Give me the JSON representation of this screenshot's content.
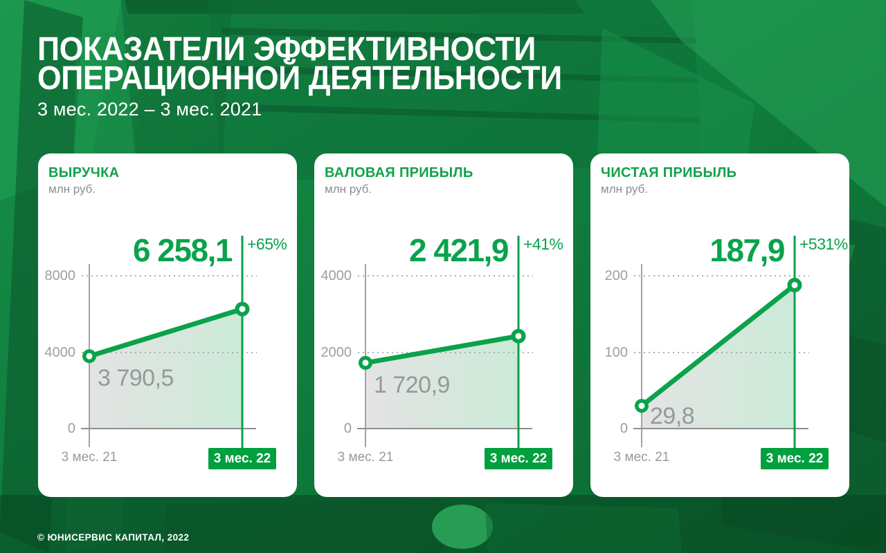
{
  "header": {
    "title_line1": "ПОКАЗАТЕЛИ ЭФФЕКТИВНОСТИ",
    "title_line2": "ОПЕРАЦИОННОЙ ДЕЯТЕЛЬНОСТИ",
    "subtitle": "3 мес. 2022 – 3 мес. 2021"
  },
  "footer": {
    "copyright": "© ЮНИСЕРВИС КАПИТАЛ, 2022"
  },
  "colors": {
    "brand_green": "#0aa24b",
    "badge_green": "#00a03e",
    "background_green": "#107a3d",
    "card_background": "#ffffff",
    "gray_text": "#97999b",
    "axis_gray": "#9fa1a3"
  },
  "cards": [
    {
      "title": "ВЫРУЧКА",
      "unit": "млн руб.",
      "value_label": "6 258,1",
      "change_label": "+65%",
      "start_value_label": "3 790,5",
      "y_ticks": [
        "8000",
        "4000",
        "0"
      ],
      "x_labels": {
        "start": "3 мес. 21",
        "end": "3 мес. 22"
      }
    },
    {
      "title": "ВАЛОВАЯ ПРИБЫЛЬ",
      "unit": "млн руб.",
      "value_label": "2 421,9",
      "change_label": "+41%",
      "start_value_label": "1 720,9",
      "y_ticks": [
        "4000",
        "2000",
        "0"
      ],
      "x_labels": {
        "start": "3 мес. 21",
        "end": "3 мес. 22"
      }
    },
    {
      "title": "ЧИСТАЯ ПРИБЫЛЬ",
      "unit": "млн руб.",
      "value_label": "187,9",
      "change_label": "+531%",
      "start_value_label": "29,8",
      "y_ticks": [
        "200",
        "100",
        "0"
      ],
      "x_labels": {
        "start": "3 мес. 21",
        "end": "3 мес. 22"
      }
    }
  ],
  "chart_data": [
    {
      "type": "line",
      "title": "ВЫРУЧКА",
      "ylabel": "млн руб.",
      "categories": [
        "3 мес. 21",
        "3 мес. 22"
      ],
      "values": [
        3790.5,
        6258.1
      ],
      "change_pct": "+65%",
      "ylim": [
        0,
        8000
      ],
      "yticks": [
        0,
        4000,
        8000
      ],
      "grid": "dotted-horizontal",
      "legend": "none",
      "area_fill": "gray-to-green-gradient"
    },
    {
      "type": "line",
      "title": "ВАЛОВАЯ ПРИБЫЛЬ",
      "ylabel": "млн руб.",
      "categories": [
        "3 мес. 21",
        "3 мес. 22"
      ],
      "values": [
        1720.9,
        2421.9
      ],
      "change_pct": "+41%",
      "ylim": [
        0,
        4000
      ],
      "yticks": [
        0,
        2000,
        4000
      ],
      "grid": "dotted-horizontal",
      "legend": "none",
      "area_fill": "gray-to-green-gradient"
    },
    {
      "type": "line",
      "title": "ЧИСТАЯ ПРИБЫЛЬ",
      "ylabel": "млн руб.",
      "categories": [
        "3 мес. 21",
        "3 мес. 22"
      ],
      "values": [
        29.8,
        187.9
      ],
      "change_pct": "+531%",
      "ylim": [
        0,
        200
      ],
      "yticks": [
        0,
        100,
        200
      ],
      "grid": "dotted-horizontal",
      "legend": "none",
      "area_fill": "gray-to-green-gradient"
    }
  ]
}
